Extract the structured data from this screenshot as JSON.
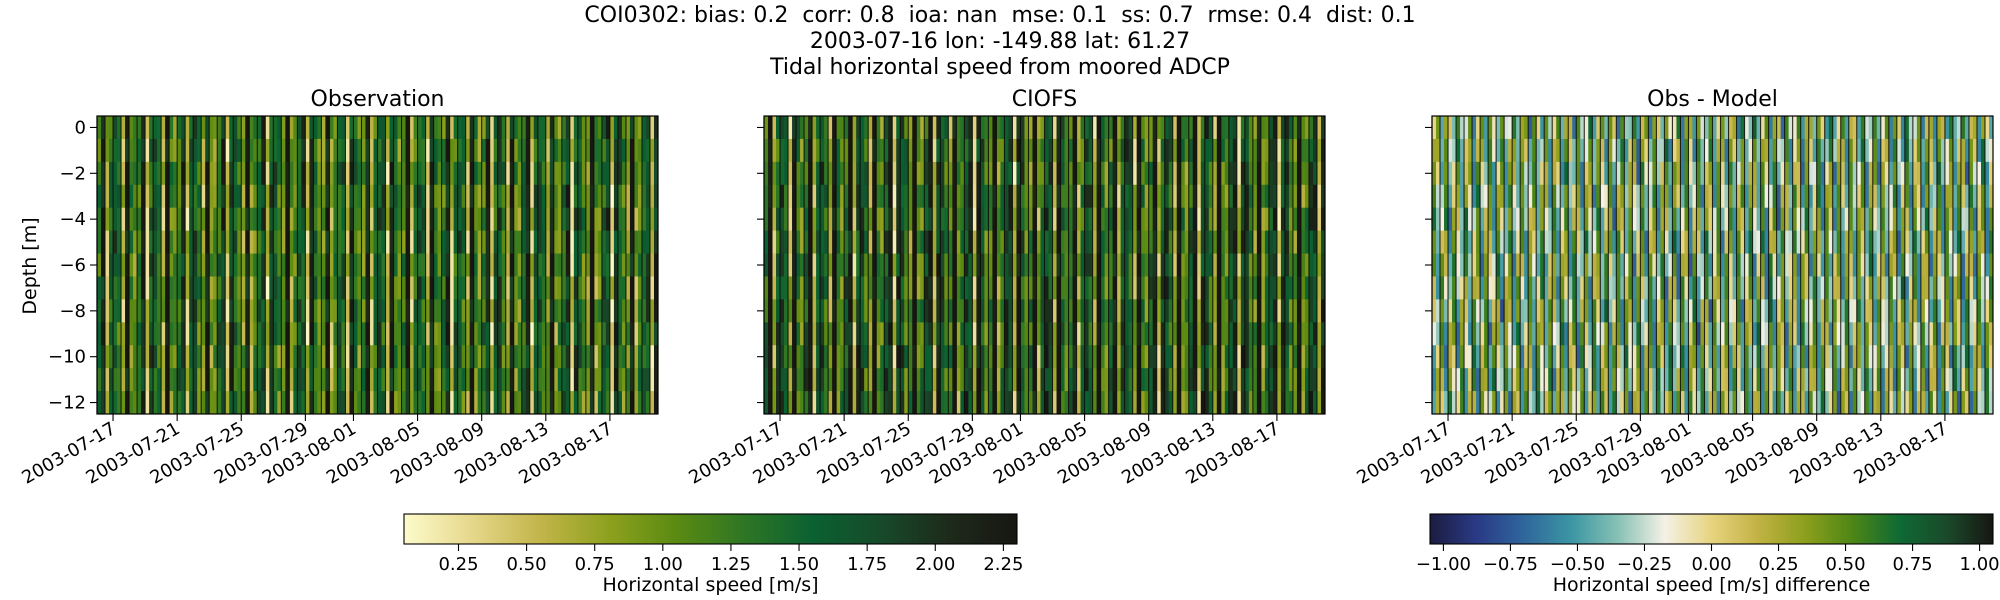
{
  "title": {
    "line1": "COI0302: bias: 0.2  corr: 0.8  ioa: nan  mse: 0.1  ss: 0.7  rmse: 0.4  dist: 0.1",
    "line2": "2003-07-16 lon: -149.88 lat: 61.27",
    "line3": "Tidal horizontal speed from moored ADCP"
  },
  "chart_data": [
    {
      "type": "heatmap",
      "title": "Observation",
      "xlabel": "",
      "ylabel": "Depth [m]",
      "x_ticks": [
        "2003-07-17",
        "2003-07-21",
        "2003-07-25",
        "2003-07-29",
        "2003-08-01",
        "2003-08-05",
        "2003-08-09",
        "2003-08-13",
        "2003-08-17"
      ],
      "x_range": [
        "2003-07-16",
        "2003-08-20"
      ],
      "y_ticks": [
        0,
        -2,
        -4,
        -6,
        -8,
        -10,
        -12
      ],
      "ylim": [
        -12.5,
        0.5
      ],
      "colormap": "speed",
      "value_range": [
        0.05,
        2.3
      ]
    },
    {
      "type": "heatmap",
      "title": "CIOFS",
      "xlabel": "",
      "ylabel": "",
      "x_ticks": [
        "2003-07-17",
        "2003-07-21",
        "2003-07-25",
        "2003-07-29",
        "2003-08-01",
        "2003-08-05",
        "2003-08-09",
        "2003-08-13",
        "2003-08-17"
      ],
      "x_range": [
        "2003-07-16",
        "2003-08-20"
      ],
      "y_ticks": [
        0,
        -2,
        -4,
        -6,
        -8,
        -10,
        -12
      ],
      "ylim": [
        -12.5,
        0.5
      ],
      "colormap": "speed",
      "value_range": [
        0.05,
        2.3
      ]
    },
    {
      "type": "heatmap",
      "title": "Obs - Model",
      "xlabel": "",
      "ylabel": "",
      "x_ticks": [
        "2003-07-17",
        "2003-07-21",
        "2003-07-25",
        "2003-07-29",
        "2003-08-01",
        "2003-08-05",
        "2003-08-09",
        "2003-08-13",
        "2003-08-17"
      ],
      "x_range": [
        "2003-07-16",
        "2003-08-20"
      ],
      "y_ticks": [
        0,
        -2,
        -4,
        -6,
        -8,
        -10,
        -12
      ],
      "ylim": [
        -12.5,
        0.5
      ],
      "colormap": "diff",
      "value_range": [
        -1.05,
        1.05
      ]
    }
  ],
  "colorbars": {
    "speed": {
      "label": "Horizontal speed [m/s]",
      "ticks": [
        "0.25",
        "0.50",
        "0.75",
        "1.00",
        "1.25",
        "1.50",
        "1.75",
        "2.00",
        "2.25"
      ],
      "tick_values": [
        0.25,
        0.5,
        0.75,
        1.0,
        1.25,
        1.5,
        1.75,
        2.0,
        2.25
      ],
      "range": [
        0.05,
        2.3
      ],
      "colors": [
        "#fdfbcc",
        "#e6d78a",
        "#c2b54a",
        "#8ea11e",
        "#5a8a12",
        "#2e7625",
        "#0a6131",
        "#174a2a",
        "#1d2a1a",
        "#171612"
      ]
    },
    "diff": {
      "label": "Horizontal speed [m/s] difference",
      "ticks": [
        "−1.00",
        "−0.75",
        "−0.50",
        "−0.25",
        "0.00",
        "0.25",
        "0.50",
        "0.75",
        "1.00"
      ],
      "tick_values": [
        -1.0,
        -0.75,
        -0.5,
        -0.25,
        0.0,
        0.25,
        0.5,
        0.75,
        1.0
      ],
      "range": [
        -1.05,
        1.05
      ],
      "colors": [
        "#1b1c3f",
        "#2a3a86",
        "#2f669c",
        "#3b95a3",
        "#86c1b5",
        "#f4f1e6",
        "#e7d47f",
        "#c1b243",
        "#8c9f1c",
        "#4e8616",
        "#0f6a33",
        "#1a4a2b",
        "#171612"
      ]
    }
  }
}
